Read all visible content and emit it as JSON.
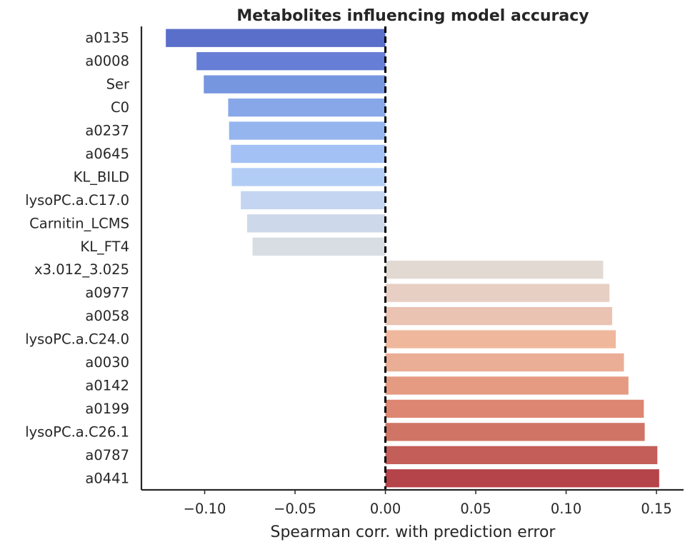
{
  "chart_data": {
    "type": "bar",
    "orientation": "horizontal",
    "title": "Metabolites influencing model accuracy",
    "xlabel": "Spearman corr. with prediction error",
    "ylabel": "",
    "xlim": [
      -0.135,
      0.165
    ],
    "xticks": [
      -0.1,
      -0.05,
      0.0,
      0.05,
      0.1,
      0.15
    ],
    "xtick_labels": [
      "−0.10",
      "−0.05",
      "0.00",
      "0.05",
      "0.10",
      "0.15"
    ],
    "reference_line": {
      "x": 0.0,
      "style": "dashed",
      "color": "#000000"
    },
    "grid": false,
    "legend": "none",
    "categories": [
      "a0135",
      "a0008",
      "Ser",
      "C0",
      "a0237",
      "a0645",
      "KL_BILD",
      "lysoPC.a.C17.0",
      "Carnitin_LCMS",
      "KL_FT4",
      "x3.012_3.025",
      "a0977",
      "a0058",
      "lysoPC.a.C24.0",
      "a0030",
      "a0142",
      "a0199",
      "lysoPC.a.C26.1",
      "a0787",
      "a0441"
    ],
    "values": [
      -0.1215,
      -0.1045,
      -0.1005,
      -0.087,
      -0.0865,
      -0.0855,
      -0.085,
      -0.08,
      -0.0765,
      -0.0735,
      0.1205,
      0.124,
      0.1255,
      0.1275,
      0.132,
      0.1345,
      0.143,
      0.1435,
      0.1505,
      0.1515
    ],
    "colors": [
      "#5a6fc9",
      "#667ed5",
      "#7796e0",
      "#87a7e8",
      "#95b5ef",
      "#a3c1f5",
      "#b2cdf5",
      "#c3d5f0",
      "#cdd8ea",
      "#d8dce3",
      "#e2d9d3",
      "#e8cfc3",
      "#ebc3b2",
      "#efb89c",
      "#eaae96",
      "#e59b82",
      "#dd8671",
      "#d07565",
      "#c35e58",
      "#b5444a"
    ]
  }
}
